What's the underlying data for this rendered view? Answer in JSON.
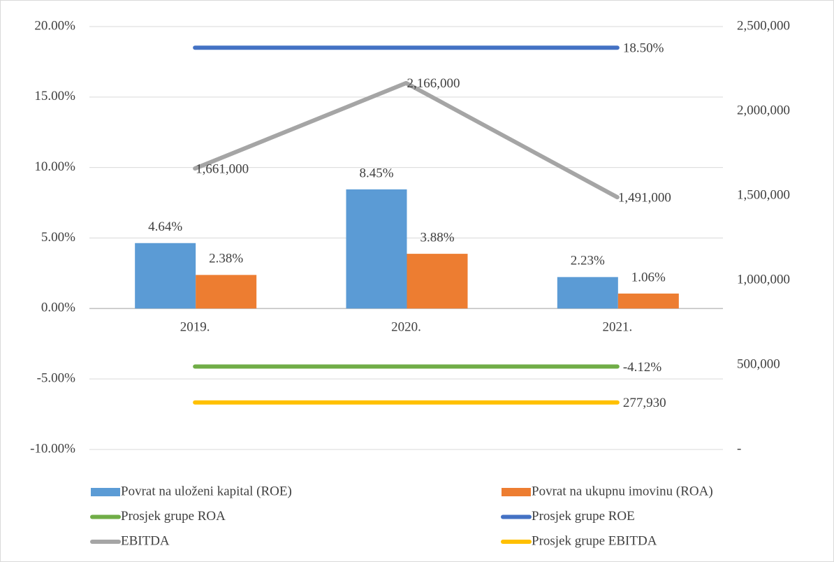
{
  "chart_data": {
    "type": "bar-line",
    "categories": [
      "2019.",
      "2020.",
      "2021."
    ],
    "ylim": [
      -10,
      20
    ],
    "yticks": [
      {
        "value": -10,
        "label": "-10.00%"
      },
      {
        "value": -5,
        "label": "-5.00%"
      },
      {
        "value": 0,
        "label": "0.00%"
      },
      {
        "value": 5,
        "label": "5.00%"
      },
      {
        "value": 10,
        "label": "10.00%"
      },
      {
        "value": 15,
        "label": "15.00%"
      },
      {
        "value": 20,
        "label": "20.00%"
      }
    ],
    "y2lim": [
      0,
      2500000
    ],
    "y2ticks": [
      {
        "value": 0,
        "label": "-"
      },
      {
        "value": 500000,
        "label": "500,000"
      },
      {
        "value": 1000000,
        "label": "1,000,000"
      },
      {
        "value": 1500000,
        "label": "1,500,000"
      },
      {
        "value": 2000000,
        "label": "2,000,000"
      },
      {
        "value": 2500000,
        "label": "2,500,000"
      }
    ],
    "grid": true,
    "legend": "bottom",
    "series": [
      {
        "name": "Povrat na uloženi kapital (ROE)",
        "type": "bar",
        "color": "#5b9bd5",
        "values": [
          4.64,
          8.45,
          2.23
        ],
        "value_labels": [
          "4.64%",
          "8.45%",
          "2.23%"
        ]
      },
      {
        "name": "Povrat na ukupnu imovinu (ROA)",
        "type": "bar",
        "color": "#ed7d31",
        "values": [
          2.38,
          3.88,
          1.06
        ],
        "value_labels": [
          "2.38%",
          "3.88%",
          "1.06%"
        ]
      },
      {
        "name": "Prosjek grupe ROA",
        "type": "line",
        "color": "#70ad47",
        "values": [
          -4.12,
          -4.12,
          -4.12
        ],
        "value_labels": [
          null,
          null,
          "-4.12%"
        ]
      },
      {
        "name": "Prosjek grupe ROE",
        "type": "line",
        "color": "#4472c4",
        "values": [
          18.5,
          18.5,
          18.5
        ],
        "value_labels": [
          null,
          null,
          "18.50%"
        ]
      },
      {
        "name": "EBITDA",
        "type": "line",
        "axis": "y2",
        "color": "#a5a5a5",
        "values": [
          1661000,
          2166000,
          1491000
        ],
        "value_labels": [
          "1,661,000",
          "2,166,000",
          "1,491,000"
        ]
      },
      {
        "name": "Prosjek grupe EBITDA",
        "type": "line",
        "axis": "y2",
        "color": "#ffc000",
        "values": [
          277930,
          277930,
          277930
        ],
        "value_labels": [
          null,
          null,
          "277,930"
        ]
      }
    ]
  }
}
